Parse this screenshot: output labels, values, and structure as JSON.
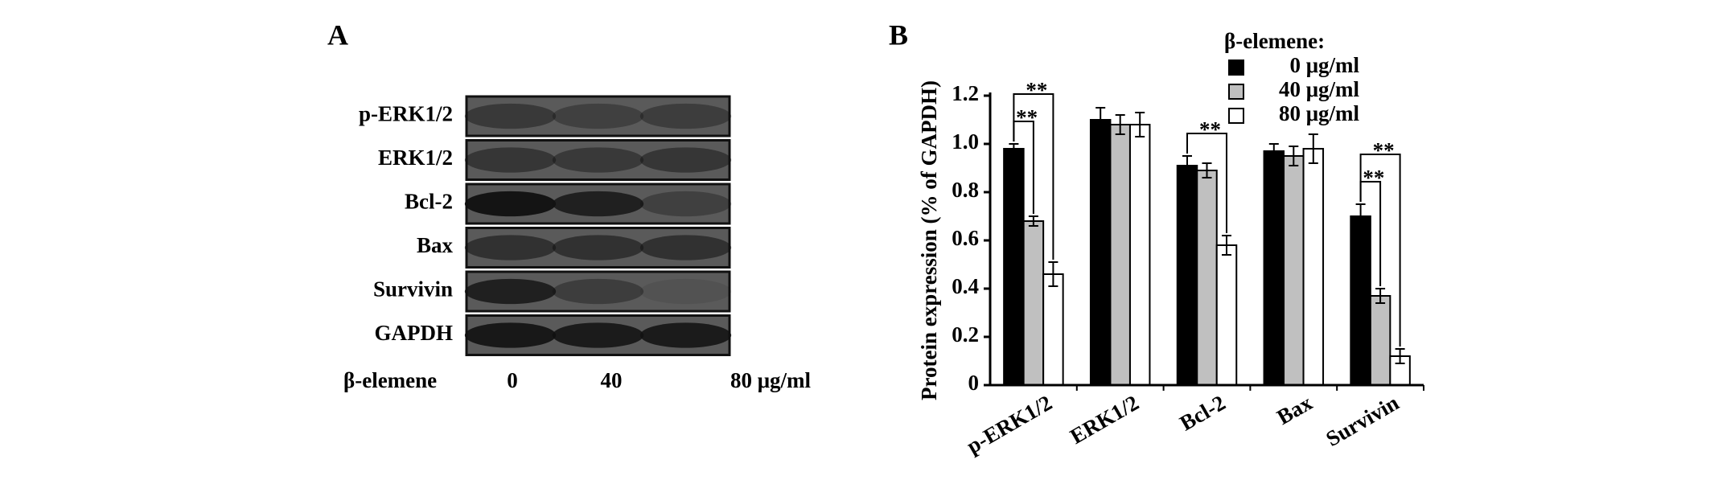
{
  "blot_panel": {
    "label": "A",
    "rows": [
      "p-ERK1/2",
      "ERK1/2",
      "Bcl-2",
      "Bax",
      "Survivin",
      "GAPDH"
    ],
    "treatment_label": "β-elemene",
    "lanes": [
      "0",
      "40",
      "80 μg/ml"
    ]
  },
  "chart_data": {
    "type": "bar",
    "panel_label": "B",
    "y_label": "Protein expression (% of GAPDH)",
    "legend_title": "β-elemene:",
    "categories": [
      "p-ERK1/2",
      "ERK1/2",
      "Bcl-2",
      "Bax",
      "Survivin"
    ],
    "series": [
      {
        "name": "0 μg/ml",
        "color": "#000000",
        "values": [
          0.98,
          1.1,
          0.91,
          0.97,
          0.7
        ],
        "errors": [
          0.02,
          0.05,
          0.04,
          0.03,
          0.05
        ]
      },
      {
        "name": "40 μg/ml",
        "color": "#c0c0c0",
        "values": [
          0.68,
          1.08,
          0.89,
          0.95,
          0.37
        ],
        "errors": [
          0.02,
          0.04,
          0.03,
          0.04,
          0.03
        ]
      },
      {
        "name": "80 μg/ml",
        "color": "#ffffff",
        "values": [
          0.46,
          1.08,
          0.58,
          0.98,
          0.12
        ],
        "errors": [
          0.05,
          0.05,
          0.04,
          0.06,
          0.03
        ]
      }
    ],
    "significance": [
      {
        "category": "p-ERK1/2",
        "from": "0 μg/ml",
        "to": "80 μg/ml",
        "label": "**"
      },
      {
        "category": "p-ERK1/2",
        "from": "0 μg/ml",
        "to": "40 μg/ml",
        "label": "**"
      },
      {
        "category": "Bcl-2",
        "from": "0 μg/ml",
        "to": "80 μg/ml",
        "label": "**"
      },
      {
        "category": "Survivin",
        "from": "0 μg/ml",
        "to": "80 μg/ml",
        "label": "**"
      },
      {
        "category": "Survivin",
        "from": "0 μg/ml",
        "to": "40 μg/ml",
        "label": "**"
      }
    ],
    "ylim": [
      0,
      1.2
    ],
    "yticks": [
      0,
      0.2,
      0.4,
      0.6,
      0.8,
      {
        "value": 1,
        "label": "1.0"
      },
      1.2
    ]
  }
}
